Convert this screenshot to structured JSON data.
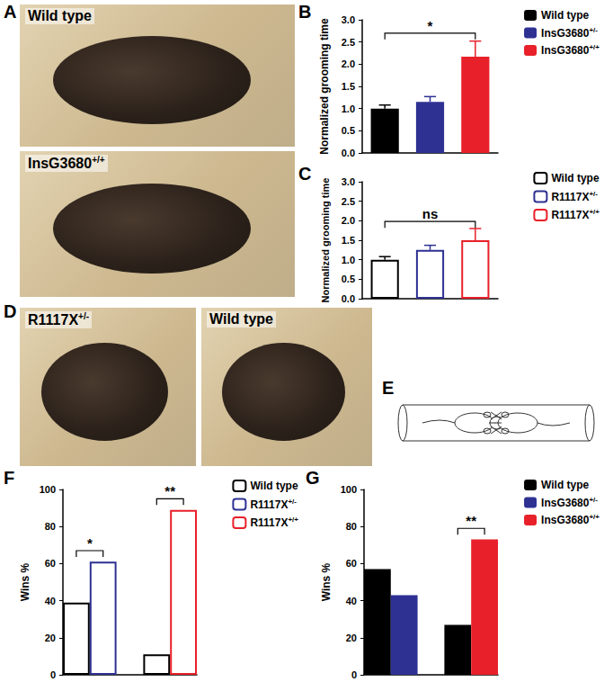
{
  "panels": [
    {
      "label": "A",
      "photos": [
        "Wild type",
        "InsG3680+/+"
      ]
    },
    {
      "label": "D",
      "photos": [
        "R1117X+/-",
        "Wild type"
      ]
    },
    {
      "label": "E"
    }
  ],
  "chart_data": [
    {
      "panel": "B",
      "type": "bar",
      "y_label": "Normalized grooming time",
      "categories": [
        null,
        null,
        null
      ],
      "ylim": [
        0,
        3
      ],
      "yticks": [
        {
          "value": 0,
          "label": "0.0"
        },
        {
          "value": 0.5,
          "label": "0.5"
        },
        {
          "value": 1,
          "label": "1.0"
        },
        {
          "value": 1.5,
          "label": "1.5"
        },
        {
          "value": 2,
          "label": "2.0"
        },
        {
          "value": 2.5,
          "label": "2.5"
        },
        {
          "value": 3,
          "label": "3.0"
        }
      ],
      "tick_labels": "y",
      "legend": "right",
      "grid": false,
      "series": [
        {
          "name": "Wild type",
          "color": "#000000",
          "marker": "filled",
          "values": [
            1.0,
            null,
            null
          ],
          "errors": [
            0.08,
            null,
            null
          ]
        },
        {
          "name": "InsG3680+/-",
          "color": "#2e3192",
          "marker": "filled",
          "values": [
            null,
            1.15,
            null
          ],
          "errors": [
            null,
            0.12,
            null
          ]
        },
        {
          "name": "InsG3680+/+",
          "color": "#e8202a",
          "marker": "filled",
          "values": [
            null,
            null,
            2.17
          ],
          "errors": [
            null,
            null,
            0.35
          ]
        }
      ],
      "annotations": [
        {
          "from": 0,
          "to": 2,
          "text": "*"
        }
      ]
    },
    {
      "panel": "C",
      "type": "bar",
      "y_label": "Normalized grooming time",
      "categories": [
        null,
        null,
        null
      ],
      "ylim": [
        0,
        3
      ],
      "yticks": [
        {
          "value": 0,
          "label": "0.0"
        },
        {
          "value": 0.5,
          "label": "0.5"
        },
        {
          "value": 1,
          "label": "1.0"
        },
        {
          "value": 1.5,
          "label": "1.5"
        },
        {
          "value": 2,
          "label": "2.0"
        },
        {
          "value": 2.5,
          "label": "2.5"
        },
        {
          "value": 3,
          "label": "3.0"
        }
      ],
      "tick_labels": "y",
      "legend": "right",
      "grid": false,
      "series": [
        {
          "name": "Wild type",
          "color": "#000000",
          "marker": "open",
          "values": [
            1.0,
            null,
            null
          ],
          "errors": [
            0.08,
            null,
            null
          ]
        },
        {
          "name": "R1117X+/-",
          "color": "#2e3192",
          "marker": "open",
          "values": [
            null,
            1.25,
            null
          ],
          "errors": [
            null,
            0.12,
            null
          ]
        },
        {
          "name": "R1117X+/+",
          "color": "#e8202a",
          "marker": "open",
          "values": [
            null,
            null,
            1.5
          ],
          "errors": [
            null,
            null,
            0.3
          ]
        }
      ],
      "annotations": [
        {
          "from": 0,
          "to": 2,
          "text": "ns"
        }
      ]
    },
    {
      "panel": "F",
      "type": "bar",
      "y_label": "Wins %",
      "categories": [
        null,
        null,
        null,
        null,
        null
      ],
      "ylim": [
        0,
        100
      ],
      "yticks": [
        0,
        20,
        40,
        60,
        80,
        100
      ],
      "tick_labels": "y",
      "legend": "right",
      "grid": false,
      "series": [
        {
          "name": "Wild type",
          "color": "#000000",
          "marker": "open",
          "values": [
            39,
            null,
            null,
            11,
            null
          ]
        },
        {
          "name": "R1117X+/-",
          "color": "#2e3192",
          "marker": "open",
          "values": [
            null,
            61,
            null,
            null,
            null
          ]
        },
        {
          "name": "R1117X+/+",
          "color": "#e8202a",
          "marker": "open",
          "values": [
            null,
            null,
            null,
            null,
            89
          ]
        }
      ],
      "annotations": [
        {
          "from": 0,
          "to": 1,
          "text": "*"
        },
        {
          "from": 3,
          "to": 4,
          "text": "**"
        }
      ]
    },
    {
      "panel": "G",
      "type": "bar",
      "y_label": "Wins %",
      "categories": [
        null,
        null,
        null,
        null,
        null
      ],
      "ylim": [
        0,
        100
      ],
      "yticks": [
        0,
        20,
        40,
        60,
        80,
        100
      ],
      "tick_labels": "y",
      "legend": "right",
      "grid": false,
      "series": [
        {
          "name": "Wild type",
          "color": "#000000",
          "marker": "filled",
          "values": [
            57,
            null,
            null,
            27,
            null
          ]
        },
        {
          "name": "InsG3680+/-",
          "color": "#2e3192",
          "marker": "filled",
          "values": [
            null,
            43,
            null,
            null,
            null
          ]
        },
        {
          "name": "InsG3680+/+",
          "color": "#e8202a",
          "marker": "filled",
          "values": [
            null,
            null,
            null,
            null,
            73
          ]
        }
      ],
      "annotations": [
        {
          "from": 3,
          "to": 4,
          "text": "**"
        }
      ]
    }
  ]
}
